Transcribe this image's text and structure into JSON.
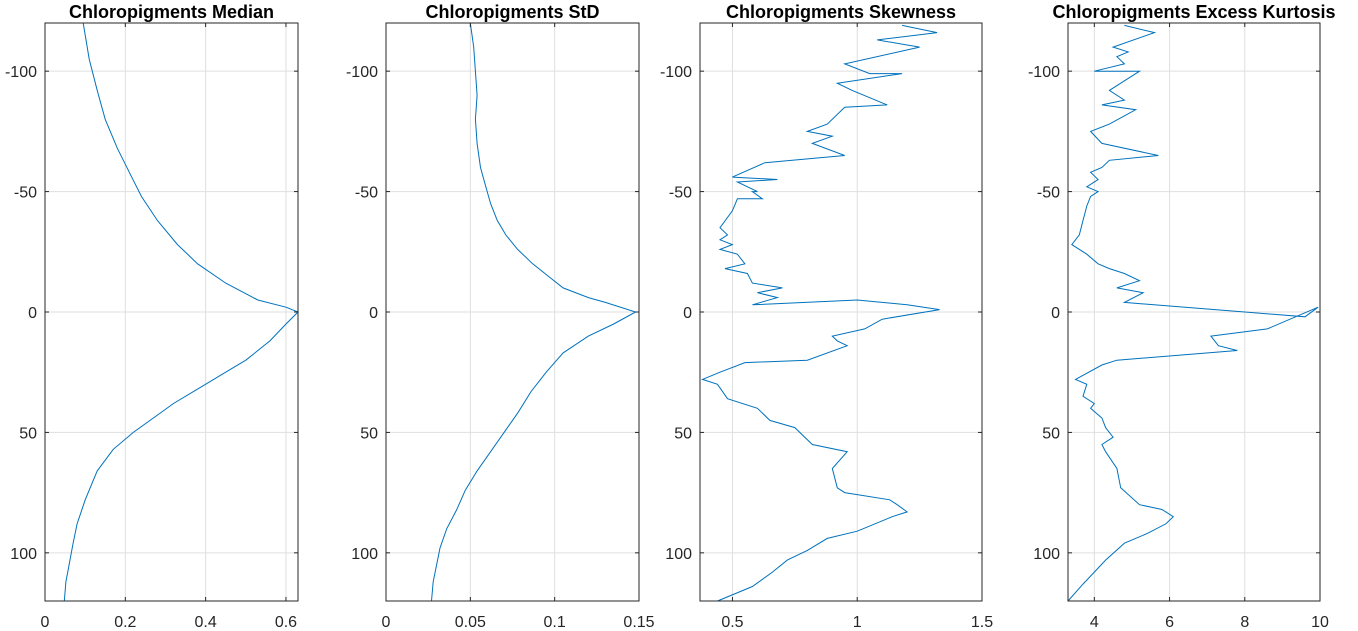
{
  "chart_data": [
    {
      "type": "line",
      "title": "Chloropigments Median",
      "xlim": [
        0,
        0.63
      ],
      "ylim": [
        -120,
        120
      ],
      "y_reversed": true,
      "grid": true,
      "xticks": [
        0,
        0.2,
        0.4,
        0.6
      ],
      "xtick_labels": [
        "0",
        "0.2",
        "0.4",
        "0.6"
      ],
      "yticks": [
        -100,
        -50,
        0,
        50,
        100
      ],
      "ytick_labels": [
        "-100",
        "-50",
        "0",
        "50",
        "100"
      ],
      "x": [
        0.095,
        0.11,
        0.13,
        0.15,
        0.18,
        0.21,
        0.24,
        0.28,
        0.33,
        0.38,
        0.45,
        0.53,
        0.6,
        0.63,
        0.6,
        0.56,
        0.5,
        0.44,
        0.38,
        0.32,
        0.27,
        0.22,
        0.17,
        0.13,
        0.1,
        0.08,
        0.07,
        0.06,
        0.052,
        0.048
      ],
      "y": [
        -120,
        -105,
        -92,
        -80,
        -68,
        -58,
        -48,
        -38,
        -28,
        -20,
        -12,
        -5,
        -2,
        0,
        5,
        12,
        20,
        26,
        32,
        38,
        44,
        50,
        57,
        66,
        78,
        88,
        96,
        105,
        112,
        120
      ]
    },
    {
      "type": "line",
      "title": "Chloropigments StD",
      "xlim": [
        0,
        0.15
      ],
      "ylim": [
        -120,
        120
      ],
      "y_reversed": true,
      "grid": true,
      "xticks": [
        0,
        0.05,
        0.1,
        0.15
      ],
      "xtick_labels": [
        "0",
        "0.05",
        "0.1",
        "0.15"
      ],
      "yticks": [
        -100,
        -50,
        0,
        50,
        100
      ],
      "ytick_labels": [
        "-100",
        "-50",
        "0",
        "50",
        "100"
      ],
      "x": [
        0.05,
        0.052,
        0.053,
        0.054,
        0.053,
        0.054,
        0.056,
        0.058,
        0.06,
        0.062,
        0.066,
        0.071,
        0.078,
        0.087,
        0.096,
        0.105,
        0.12,
        0.13,
        0.148,
        0.135,
        0.12,
        0.105,
        0.095,
        0.086,
        0.078,
        0.07,
        0.062,
        0.054,
        0.047,
        0.042,
        0.036,
        0.032,
        0.03,
        0.028,
        0.027
      ],
      "y": [
        -120,
        -110,
        -100,
        -90,
        -80,
        -70,
        -60,
        -55,
        -50,
        -45,
        -38,
        -32,
        -26,
        -20,
        -15,
        -10,
        -6,
        -4,
        0,
        5,
        10,
        17,
        25,
        33,
        42,
        50,
        58,
        66,
        74,
        82,
        90,
        98,
        105,
        112,
        120
      ]
    },
    {
      "type": "line",
      "title": "Chloropigments Skewness",
      "xlim": [
        0.37,
        1.5
      ],
      "ylim": [
        -120,
        120
      ],
      "y_reversed": true,
      "grid": true,
      "xticks": [
        0.5,
        1,
        1.5
      ],
      "xtick_labels": [
        "0.5",
        "1",
        "1.5"
      ],
      "yticks": [
        -100,
        -50,
        0,
        50,
        100
      ],
      "ytick_labels": [
        "-100",
        "-50",
        "0",
        "50",
        "100"
      ],
      "x": [
        1.18,
        1.32,
        1.08,
        1.25,
        0.95,
        1.05,
        1.18,
        0.92,
        0.98,
        1.12,
        0.95,
        0.88,
        0.8,
        0.9,
        0.82,
        0.95,
        0.63,
        0.5,
        0.68,
        0.52,
        0.6,
        0.58,
        0.62,
        0.52,
        0.5,
        0.45,
        0.48,
        0.45,
        0.5,
        0.45,
        0.52,
        0.55,
        0.47,
        0.56,
        0.58,
        0.7,
        0.6,
        0.68,
        0.58,
        1.0,
        1.2,
        1.33,
        1.1,
        1.03,
        0.9,
        0.92,
        0.96,
        0.8,
        0.55,
        0.45,
        0.38,
        0.44,
        0.48,
        0.6,
        0.65,
        0.75,
        0.82,
        0.96,
        0.9,
        0.92,
        0.95,
        1.13,
        1.16,
        1.2,
        1.14,
        1.0,
        0.88,
        0.8,
        0.72,
        0.66,
        0.58,
        0.44
      ],
      "y": [
        -119,
        -116,
        -113,
        -110,
        -103,
        -99,
        -99,
        -95,
        -92,
        -86,
        -85,
        -78,
        -75,
        -73,
        -70,
        -65,
        -62,
        -56,
        -55,
        -54,
        -50,
        -50,
        -47,
        -47,
        -42,
        -35,
        -32,
        -30,
        -28,
        -26,
        -24,
        -20,
        -18,
        -16,
        -12,
        -10,
        -8,
        -6,
        -3,
        -5,
        -3,
        -1,
        3,
        7,
        10,
        12,
        14,
        20,
        21,
        25,
        28,
        30,
        36,
        40,
        45,
        48,
        55,
        58,
        65,
        73,
        75,
        78,
        80,
        83,
        85,
        91,
        94,
        99,
        103,
        108,
        114,
        120
      ]
    },
    {
      "type": "line",
      "title": "Chloropigments Excess Kurtosis",
      "xlim": [
        3.3,
        10
      ],
      "ylim": [
        -120,
        120
      ],
      "y_reversed": true,
      "grid": true,
      "xticks": [
        4,
        6,
        8,
        10
      ],
      "xtick_labels": [
        "4",
        "6",
        "8",
        "10"
      ],
      "yticks": [
        -100,
        -50,
        0,
        50,
        100
      ],
      "ytick_labels": [
        "-100",
        "-50",
        "0",
        "50",
        "100"
      ],
      "x": [
        4.8,
        5.6,
        4.5,
        4.9,
        4.6,
        4.8,
        4.0,
        5.2,
        4.7,
        4.4,
        4.8,
        4.2,
        5.1,
        4.4,
        3.9,
        4.2,
        5.7,
        4.4,
        4.2,
        3.9,
        4.1,
        3.8,
        4.1,
        3.9,
        3.8,
        3.7,
        3.6,
        3.4,
        3.8,
        4.1,
        4.4,
        4.8,
        5.2,
        4.6,
        5.3,
        4.8,
        8.0,
        9.6,
        9.95,
        8.6,
        7.1,
        7.3,
        7.8,
        4.6,
        4.2,
        3.5,
        3.8,
        3.7,
        4.0,
        3.9,
        4.2,
        4.3,
        4.5,
        4.2,
        4.3,
        4.6,
        4.7,
        5.2,
        5.8,
        6.1,
        5.9,
        5.4,
        4.8,
        4.3,
        4.0,
        3.7,
        3.3
      ],
      "y": [
        -119,
        -116,
        -110,
        -108,
        -106,
        -103,
        -100,
        -100,
        -95,
        -92,
        -88,
        -86,
        -84,
        -78,
        -75,
        -70,
        -65,
        -63,
        -60,
        -58,
        -55,
        -52,
        -50,
        -48,
        -44,
        -38,
        -32,
        -28,
        -24,
        -20,
        -18,
        -16,
        -13,
        -10,
        -8,
        -4,
        0,
        2,
        -2,
        7,
        10,
        14,
        16,
        20,
        22,
        28,
        30,
        35,
        38,
        40,
        44,
        48,
        52,
        55,
        58,
        65,
        73,
        80,
        82,
        85,
        88,
        92,
        96,
        103,
        108,
        113,
        120
      ]
    }
  ]
}
